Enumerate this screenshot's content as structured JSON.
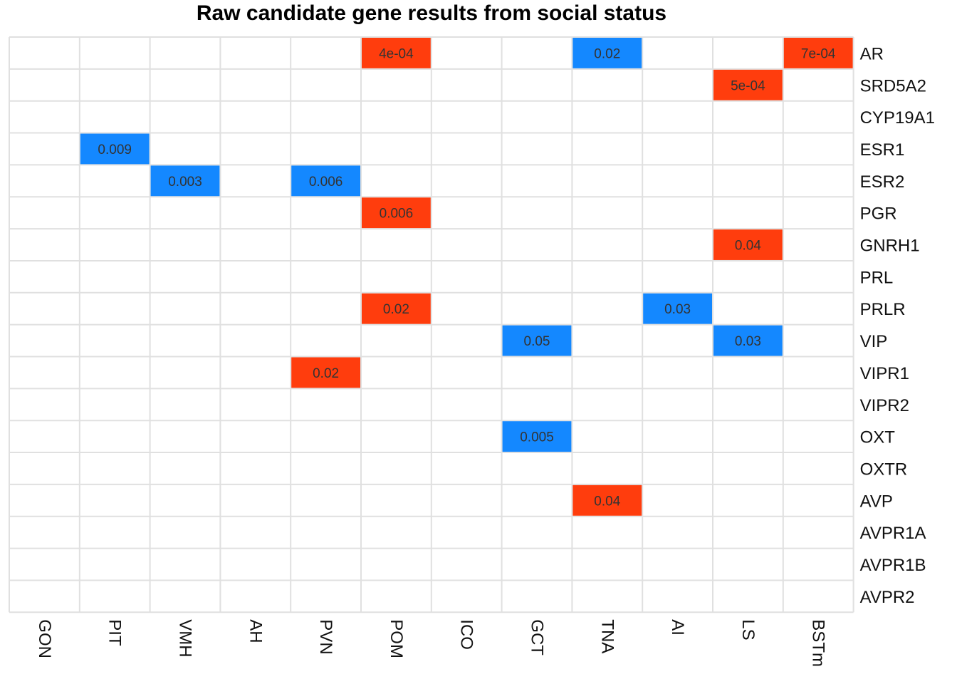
{
  "chart_data": {
    "type": "heatmap",
    "title": "Raw candidate gene results from social status",
    "xlabel": "",
    "ylabel": "",
    "columns": [
      "GON",
      "PIT",
      "VMH",
      "AH",
      "PVN",
      "POM",
      "ICO",
      "GCT",
      "TNA",
      "AI",
      "LS",
      "BSTm"
    ],
    "rows": [
      "AR",
      "SRD5A2",
      "CYP19A1",
      "ESR1",
      "ESR2",
      "PGR",
      "GNRH1",
      "PRL",
      "PRLR",
      "VIP",
      "VIPR1",
      "VIPR2",
      "OXT",
      "OXTR",
      "AVP",
      "AVPR1A",
      "AVPR1B",
      "AVPR2"
    ],
    "grid": true,
    "legend": "none",
    "colors": {
      "up": "#FF3D0D",
      "down": "#1488FF",
      "grid": "#E0E0E0"
    },
    "cells": [
      {
        "row": "AR",
        "col": "POM",
        "label": "4e-04",
        "direction": "up"
      },
      {
        "row": "AR",
        "col": "TNA",
        "label": "0.02",
        "direction": "down"
      },
      {
        "row": "AR",
        "col": "BSTm",
        "label": "7e-04",
        "direction": "up"
      },
      {
        "row": "SRD5A2",
        "col": "LS",
        "label": "5e-04",
        "direction": "up"
      },
      {
        "row": "ESR1",
        "col": "PIT",
        "label": "0.009",
        "direction": "down"
      },
      {
        "row": "ESR2",
        "col": "VMH",
        "label": "0.003",
        "direction": "down"
      },
      {
        "row": "ESR2",
        "col": "PVN",
        "label": "0.006",
        "direction": "down"
      },
      {
        "row": "PGR",
        "col": "POM",
        "label": "0.006",
        "direction": "up"
      },
      {
        "row": "GNRH1",
        "col": "LS",
        "label": "0.04",
        "direction": "up"
      },
      {
        "row": "PRLR",
        "col": "POM",
        "label": "0.02",
        "direction": "up"
      },
      {
        "row": "PRLR",
        "col": "AI",
        "label": "0.03",
        "direction": "down"
      },
      {
        "row": "VIP",
        "col": "GCT",
        "label": "0.05",
        "direction": "down"
      },
      {
        "row": "VIP",
        "col": "LS",
        "label": "0.03",
        "direction": "down"
      },
      {
        "row": "VIPR1",
        "col": "PVN",
        "label": "0.02",
        "direction": "up"
      },
      {
        "row": "OXT",
        "col": "GCT",
        "label": "0.005",
        "direction": "down"
      },
      {
        "row": "AVP",
        "col": "TNA",
        "label": "0.04",
        "direction": "up"
      }
    ]
  }
}
